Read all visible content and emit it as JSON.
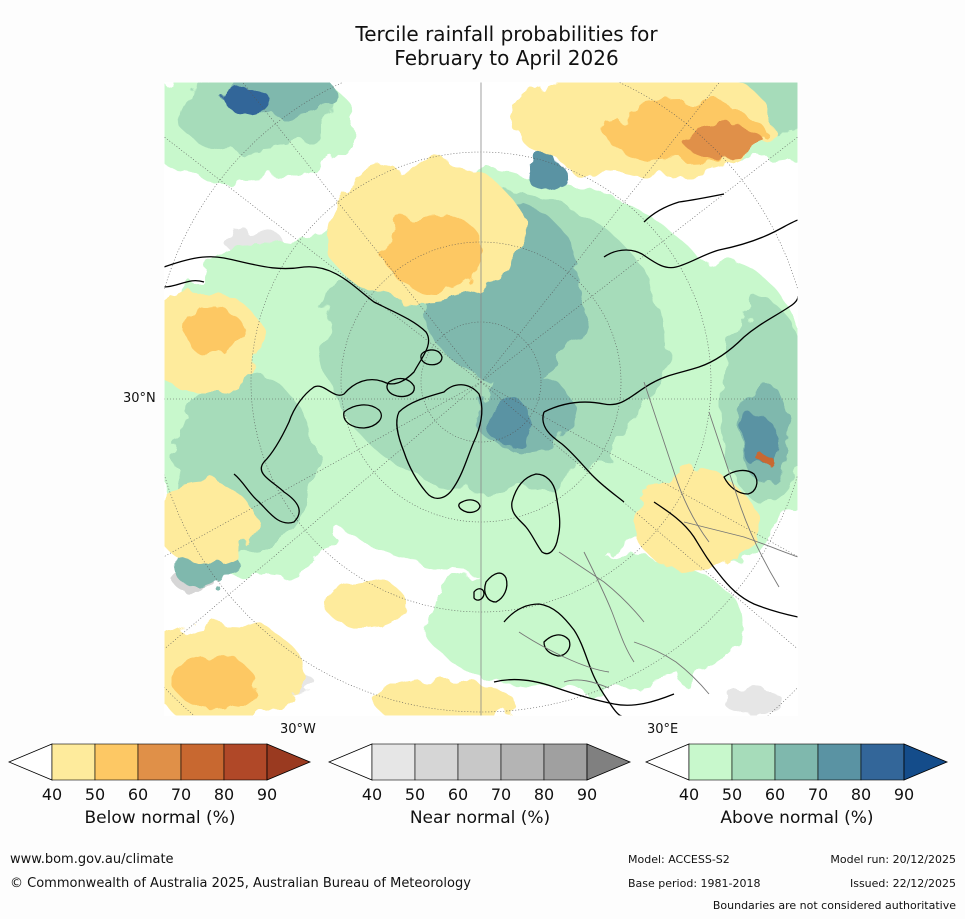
{
  "title": {
    "line1": "Tercile rainfall probabilities for",
    "line2": "February to April 2026"
  },
  "map": {
    "projection": "north-polar-stereographic",
    "lat_label": "30°N",
    "lon_label_left": "30°W",
    "lon_label_right": "30°E"
  },
  "colorbars": [
    {
      "name": "below-normal",
      "label": "Below normal (%)",
      "ticks": [
        "40",
        "50",
        "60",
        "70",
        "80",
        "90"
      ],
      "colors": [
        "#ffffff",
        "#feeb9c",
        "#fdc864",
        "#e09048",
        "#c86830",
        "#b04828",
        "#9a3a20"
      ]
    },
    {
      "name": "near-normal",
      "label": "Near normal (%)",
      "ticks": [
        "40",
        "50",
        "60",
        "70",
        "80",
        "90"
      ],
      "colors": [
        "#ffffff",
        "#e6e6e6",
        "#d6d6d6",
        "#c8c8c8",
        "#b4b4b4",
        "#a0a0a0",
        "#808080"
      ]
    },
    {
      "name": "above-normal",
      "label": "Above normal (%)",
      "ticks": [
        "40",
        "50",
        "60",
        "70",
        "80",
        "90"
      ],
      "colors": [
        "#ffffff",
        "#c8f8cc",
        "#a6dcba",
        "#7fb8ad",
        "#5a93a3",
        "#336699",
        "#144c8a"
      ]
    }
  ],
  "footer": {
    "website": "www.bom.gov.au/climate",
    "copyright": "© Commonwealth of Australia 2025, Australian Bureau of Meteorology",
    "model": "Model: ACCESS-S2",
    "base_period": "Base period: 1981-2018",
    "model_run": "Model run: 20/12/2025",
    "issued": "Issued: 22/12/2025",
    "disclaimer": "Boundaries are not considered authoritative"
  }
}
